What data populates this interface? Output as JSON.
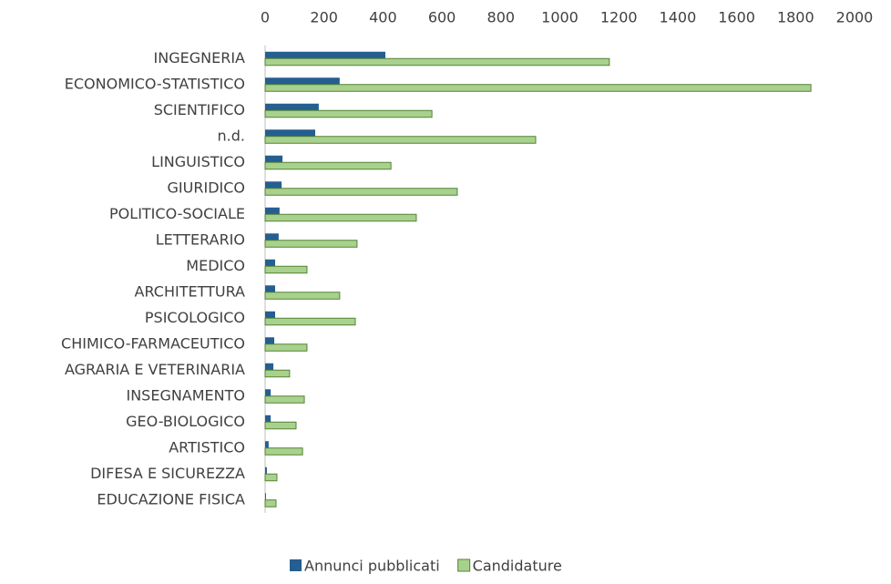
{
  "chart_data": {
    "type": "hbar",
    "categories": [
      "INGEGNERIA",
      "ECONOMICO-STATISTICO",
      "SCIENTIFICO",
      "n.d.",
      "LINGUISTICO",
      "GIURIDICO",
      "POLITICO-SOCIALE",
      "LETTERARIO",
      "MEDICO",
      "ARCHITETTURA",
      "PSICOLOGICO",
      "CHIMICO-FARMACEUTICO",
      "AGRARIA E VETERINARIA",
      "INSEGNAMENTO",
      "GEO-BIOLOGICO",
      "ARTISTICO",
      "DIFESA E SICUREZZA",
      "EDUCAZIONE FISICA"
    ],
    "series": [
      {
        "name": "Annunci pubblicati",
        "color": "#255e91",
        "values": [
          408,
          253,
          182,
          170,
          59,
          56,
          49,
          46,
          34,
          34,
          34,
          31,
          28,
          19,
          19,
          12,
          6,
          3
        ]
      },
      {
        "name": "Candidature",
        "color": "#a9d18e",
        "edgecolor": "#548235",
        "values": [
          1168,
          1852,
          566,
          918,
          427,
          652,
          513,
          312,
          142,
          253,
          306,
          142,
          83,
          133,
          105,
          127,
          40,
          37
        ]
      }
    ],
    "xlim": [
      0,
      2000
    ],
    "xticks": [
      0,
      200,
      400,
      600,
      800,
      1000,
      1200,
      1400,
      1600,
      1800,
      2000
    ],
    "grid": false,
    "legend": "bottom"
  }
}
